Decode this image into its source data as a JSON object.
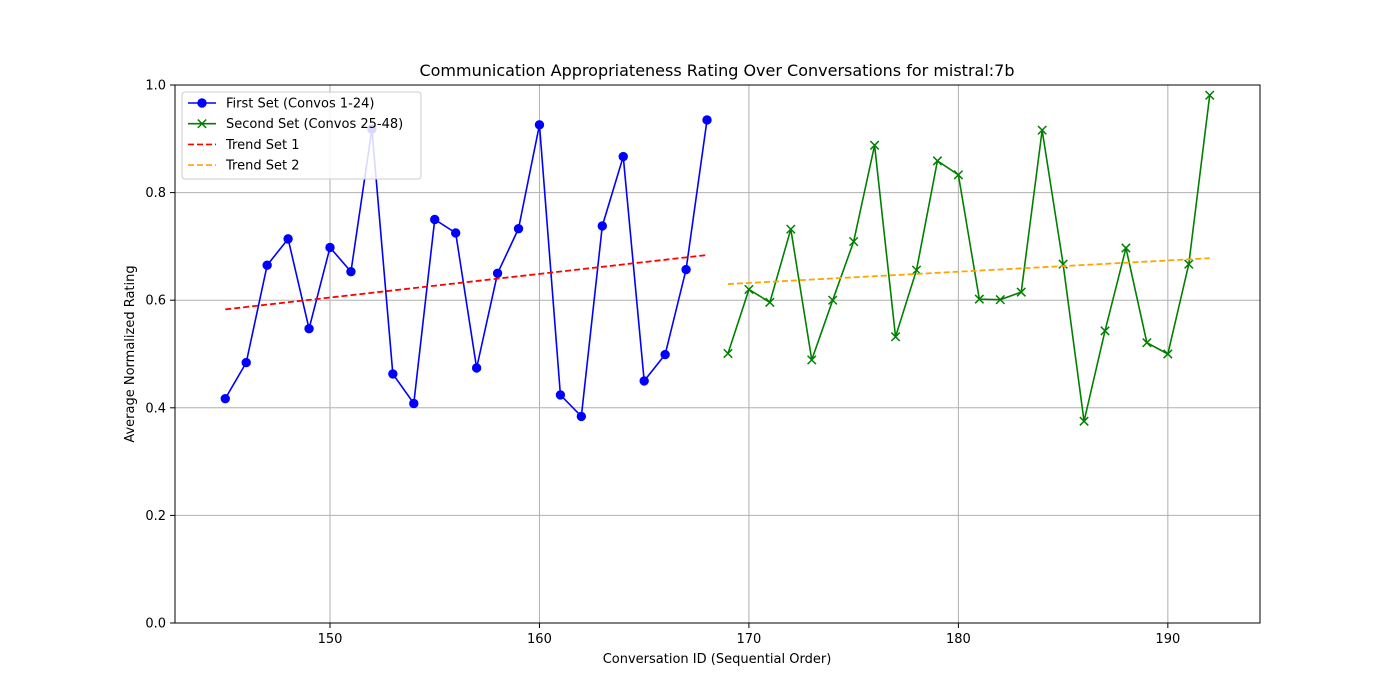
{
  "chart_data": {
    "type": "line",
    "title": "Communication Appropriateness Rating Over Conversations for mistral:7b",
    "xlabel": "Conversation ID (Sequential Order)",
    "ylabel": "Average Normalized Rating",
    "xlim": [
      142.6,
      194.4
    ],
    "ylim": [
      0,
      1.0
    ],
    "x_ticks": [
      150,
      160,
      170,
      180,
      190
    ],
    "y_ticks": [
      0.0,
      0.2,
      0.4,
      0.6,
      0.8,
      1.0
    ],
    "grid": true,
    "legend_position": "top-left",
    "series": [
      {
        "name": "First Set (Convos 1-24)",
        "color": "#0000ff",
        "marker": "circle",
        "style": "solid",
        "x": [
          145,
          146,
          147,
          148,
          149,
          150,
          151,
          152,
          153,
          154,
          155,
          156,
          157,
          158,
          159,
          160,
          161,
          162,
          163,
          164,
          165,
          166,
          167,
          168
        ],
        "y": [
          0.417,
          0.484,
          0.665,
          0.714,
          0.547,
          0.698,
          0.653,
          0.918,
          0.463,
          0.408,
          0.75,
          0.725,
          0.474,
          0.65,
          0.733,
          0.926,
          0.424,
          0.384,
          0.738,
          0.867,
          0.45,
          0.499,
          0.657,
          0.935
        ]
      },
      {
        "name": "Second Set (Convos 25-48)",
        "color": "#008000",
        "marker": "x",
        "style": "solid",
        "x": [
          169,
          170,
          171,
          172,
          173,
          174,
          175,
          176,
          177,
          178,
          179,
          180,
          181,
          182,
          183,
          184,
          185,
          186,
          187,
          188,
          189,
          190,
          191,
          192
        ],
        "y": [
          0.501,
          0.62,
          0.596,
          0.732,
          0.489,
          0.6,
          0.709,
          0.888,
          0.532,
          0.656,
          0.859,
          0.833,
          0.602,
          0.601,
          0.615,
          0.916,
          0.667,
          0.375,
          0.543,
          0.697,
          0.521,
          0.5,
          0.667,
          0.981
        ]
      },
      {
        "name": "Trend Set 1",
        "color": "#ff0000",
        "marker": "none",
        "style": "dashed",
        "x": [
          145,
          168
        ],
        "y": [
          0.583,
          0.684
        ]
      },
      {
        "name": "Trend Set 2",
        "color": "#ffa500",
        "marker": "none",
        "style": "dashed",
        "x": [
          169,
          192
        ],
        "y": [
          0.63,
          0.678
        ]
      }
    ]
  }
}
